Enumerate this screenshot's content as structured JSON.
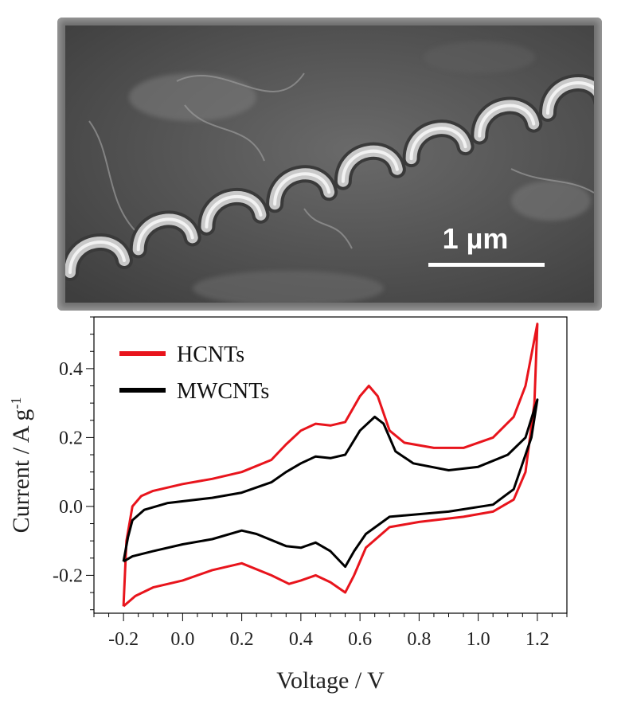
{
  "micrograph": {
    "scale_bar_label": "1 µm"
  },
  "chart_data": {
    "type": "line",
    "xlabel": "Voltage / V",
    "ylabel": "Current / A g",
    "ylabel_superscript": "-1",
    "xlim": [
      -0.3,
      1.3
    ],
    "ylim": [
      -0.31,
      0.55
    ],
    "x_ticks": [
      -0.2,
      0.0,
      0.2,
      0.4,
      0.6,
      0.8,
      1.0,
      1.2
    ],
    "x_tick_labels": [
      "-0.2",
      "0.0",
      "0.2",
      "0.4",
      "0.6",
      "0.8",
      "1.0",
      "1.2"
    ],
    "y_ticks": [
      -0.2,
      0.0,
      0.2,
      0.4
    ],
    "y_tick_labels": [
      "-0.2",
      "0.0",
      "0.2",
      "0.4"
    ],
    "grid": false,
    "legend_position": "top-left",
    "series": [
      {
        "name": "HCNTs",
        "color": "#e8141c",
        "points": [
          [
            -0.2,
            -0.29
          ],
          [
            -0.19,
            -0.1
          ],
          [
            -0.17,
            0.0
          ],
          [
            -0.14,
            0.03
          ],
          [
            -0.1,
            0.045
          ],
          [
            0.0,
            0.065
          ],
          [
            0.1,
            0.08
          ],
          [
            0.2,
            0.1
          ],
          [
            0.3,
            0.135
          ],
          [
            0.35,
            0.18
          ],
          [
            0.4,
            0.22
          ],
          [
            0.45,
            0.24
          ],
          [
            0.5,
            0.235
          ],
          [
            0.55,
            0.245
          ],
          [
            0.6,
            0.32
          ],
          [
            0.63,
            0.35
          ],
          [
            0.66,
            0.32
          ],
          [
            0.7,
            0.22
          ],
          [
            0.75,
            0.185
          ],
          [
            0.85,
            0.17
          ],
          [
            0.95,
            0.17
          ],
          [
            1.05,
            0.2
          ],
          [
            1.12,
            0.26
          ],
          [
            1.16,
            0.35
          ],
          [
            1.2,
            0.53
          ],
          [
            1.19,
            0.3
          ],
          [
            1.16,
            0.1
          ],
          [
            1.12,
            0.02
          ],
          [
            1.05,
            -0.015
          ],
          [
            0.95,
            -0.03
          ],
          [
            0.8,
            -0.045
          ],
          [
            0.7,
            -0.06
          ],
          [
            0.62,
            -0.12
          ],
          [
            0.58,
            -0.2
          ],
          [
            0.55,
            -0.25
          ],
          [
            0.5,
            -0.22
          ],
          [
            0.45,
            -0.2
          ],
          [
            0.4,
            -0.215
          ],
          [
            0.36,
            -0.225
          ],
          [
            0.3,
            -0.2
          ],
          [
            0.2,
            -0.165
          ],
          [
            0.1,
            -0.185
          ],
          [
            0.0,
            -0.215
          ],
          [
            -0.1,
            -0.235
          ],
          [
            -0.16,
            -0.26
          ],
          [
            -0.2,
            -0.29
          ]
        ]
      },
      {
        "name": "MWCNTs",
        "color": "#000000",
        "points": [
          [
            -0.2,
            -0.16
          ],
          [
            -0.185,
            -0.09
          ],
          [
            -0.17,
            -0.04
          ],
          [
            -0.13,
            -0.01
          ],
          [
            -0.05,
            0.01
          ],
          [
            0.1,
            0.025
          ],
          [
            0.2,
            0.04
          ],
          [
            0.3,
            0.07
          ],
          [
            0.35,
            0.1
          ],
          [
            0.4,
            0.125
          ],
          [
            0.45,
            0.145
          ],
          [
            0.5,
            0.14
          ],
          [
            0.55,
            0.15
          ],
          [
            0.6,
            0.22
          ],
          [
            0.65,
            0.26
          ],
          [
            0.68,
            0.24
          ],
          [
            0.72,
            0.16
          ],
          [
            0.78,
            0.125
          ],
          [
            0.9,
            0.105
          ],
          [
            1.0,
            0.115
          ],
          [
            1.1,
            0.15
          ],
          [
            1.16,
            0.2
          ],
          [
            1.2,
            0.31
          ],
          [
            1.18,
            0.2
          ],
          [
            1.12,
            0.05
          ],
          [
            1.05,
            0.005
          ],
          [
            0.9,
            -0.015
          ],
          [
            0.7,
            -0.03
          ],
          [
            0.62,
            -0.08
          ],
          [
            0.58,
            -0.13
          ],
          [
            0.55,
            -0.175
          ],
          [
            0.5,
            -0.13
          ],
          [
            0.45,
            -0.105
          ],
          [
            0.4,
            -0.12
          ],
          [
            0.35,
            -0.115
          ],
          [
            0.25,
            -0.08
          ],
          [
            0.2,
            -0.07
          ],
          [
            0.1,
            -0.095
          ],
          [
            0.0,
            -0.11
          ],
          [
            -0.1,
            -0.13
          ],
          [
            -0.17,
            -0.145
          ],
          [
            -0.2,
            -0.16
          ]
        ]
      }
    ]
  }
}
